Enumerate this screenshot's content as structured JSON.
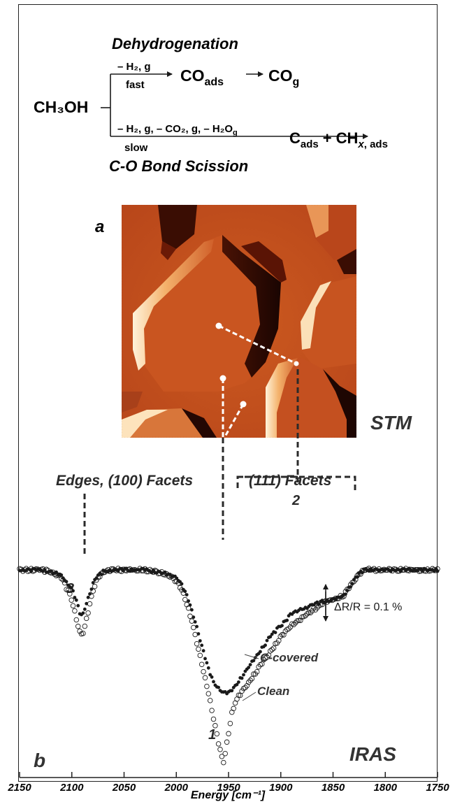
{
  "reaction": {
    "top_heading": "Dehydrogenation",
    "bottom_heading": "C-O Bond Scission",
    "reactant": "CH₃OH",
    "fast_conditions": "– H₂, g",
    "fast_label": "fast",
    "fast_product_1": "CO",
    "fast_product_1_sub": "ads",
    "fast_product_2": "CO",
    "fast_product_2_sub": "g",
    "slow_conditions": "– H₂, g, – CO₂, g, – H₂O",
    "slow_conditions_sub": "g",
    "slow_label": "slow",
    "slow_product_1": "C",
    "slow_product_1_sub": "ads",
    "slow_plus": "+",
    "slow_product_2": "CH",
    "slow_product_2_x": "x",
    "slow_product_2_sub": ", ads"
  },
  "stm": {
    "panel_label": "a",
    "method_label": "STM",
    "colors": {
      "dark": "#2a0a05",
      "mid": "#c2410c",
      "light": "#f3b06b",
      "bright": "#fff1d6",
      "bg": "#c4501c"
    }
  },
  "annotations": {
    "edges_label": "Edges, (100) Facets",
    "facets_label": "(111) Facets",
    "band_1": "1",
    "band_2": "2",
    "band_3": "3",
    "scale_label": "ΔR/R = 0.1 %",
    "clean_label": "Clean",
    "covered_label": "C-covered",
    "panel_b_label": "b",
    "method_label": "IRAS"
  },
  "chart_data": {
    "type": "scatter",
    "title": "",
    "xlabel": "Energy [cm⁻¹]",
    "ylabel": "",
    "xlim": [
      2150,
      1750
    ],
    "x_reversed": true,
    "ylim": [
      -0.56,
      0.1
    ],
    "y_units": "ΔR/R (%)",
    "x_ticks": [
      2150,
      2100,
      2050,
      2000,
      1950,
      1900,
      1850,
      1800,
      1750
    ],
    "x_tick_labels": [
      "2150",
      "2100",
      "2050",
      "2000",
      "1950",
      "1900",
      "1850",
      "1800",
      "1750"
    ],
    "series": [
      {
        "name": "Clean",
        "marker": "open-circle",
        "x": [
          2150,
          2140,
          2130,
          2120,
          2110,
          2100,
          2095,
          2092,
          2090,
          2088,
          2085,
          2080,
          2075,
          2070,
          2060,
          2050,
          2040,
          2030,
          2020,
          2010,
          2000,
          1995,
          1990,
          1985,
          1980,
          1975,
          1970,
          1965,
          1960,
          1957,
          1955,
          1953,
          1950,
          1947,
          1944,
          1940,
          1935,
          1930,
          1920,
          1910,
          1900,
          1890,
          1880,
          1870,
          1860,
          1850,
          1840,
          1835,
          1830,
          1825,
          1820,
          1810,
          1800,
          1790,
          1780,
          1770,
          1760,
          1750
        ],
        "values": [
          0,
          0,
          0,
          -0.005,
          -0.02,
          -0.08,
          -0.14,
          -0.17,
          -0.175,
          -0.16,
          -0.12,
          -0.06,
          -0.02,
          -0.005,
          0,
          0,
          0,
          0,
          -0.005,
          -0.01,
          -0.03,
          -0.05,
          -0.09,
          -0.14,
          -0.2,
          -0.26,
          -0.32,
          -0.39,
          -0.46,
          -0.5,
          -0.52,
          -0.49,
          -0.44,
          -0.39,
          -0.36,
          -0.34,
          -0.32,
          -0.3,
          -0.26,
          -0.22,
          -0.18,
          -0.15,
          -0.13,
          -0.11,
          -0.09,
          -0.08,
          -0.07,
          -0.05,
          -0.03,
          -0.01,
          0,
          0,
          0,
          0,
          0,
          0,
          0,
          0
        ]
      },
      {
        "name": "C-covered",
        "marker": "filled-circle",
        "x": [
          2150,
          2140,
          2130,
          2120,
          2110,
          2100,
          2095,
          2092,
          2090,
          2088,
          2085,
          2080,
          2075,
          2070,
          2060,
          2050,
          2040,
          2030,
          2020,
          2010,
          2000,
          1995,
          1990,
          1985,
          1980,
          1975,
          1970,
          1965,
          1960,
          1955,
          1950,
          1945,
          1940,
          1935,
          1930,
          1920,
          1910,
          1900,
          1890,
          1880,
          1870,
          1860,
          1850,
          1840,
          1835,
          1830,
          1825,
          1820,
          1810,
          1800,
          1790,
          1780,
          1770,
          1760,
          1750
        ],
        "values": [
          0,
          0,
          0,
          -0.005,
          -0.015,
          -0.05,
          -0.09,
          -0.12,
          -0.125,
          -0.11,
          -0.08,
          -0.04,
          -0.015,
          -0.005,
          0,
          0,
          0,
          0,
          -0.005,
          -0.01,
          -0.02,
          -0.04,
          -0.07,
          -0.11,
          -0.16,
          -0.21,
          -0.26,
          -0.3,
          -0.32,
          -0.33,
          -0.33,
          -0.32,
          -0.3,
          -0.28,
          -0.26,
          -0.22,
          -0.18,
          -0.15,
          -0.12,
          -0.105,
          -0.095,
          -0.085,
          -0.08,
          -0.07,
          -0.05,
          -0.03,
          -0.01,
          0,
          0,
          0,
          0,
          0,
          0,
          0,
          0
        ]
      }
    ],
    "grid": false,
    "legend": "none"
  }
}
